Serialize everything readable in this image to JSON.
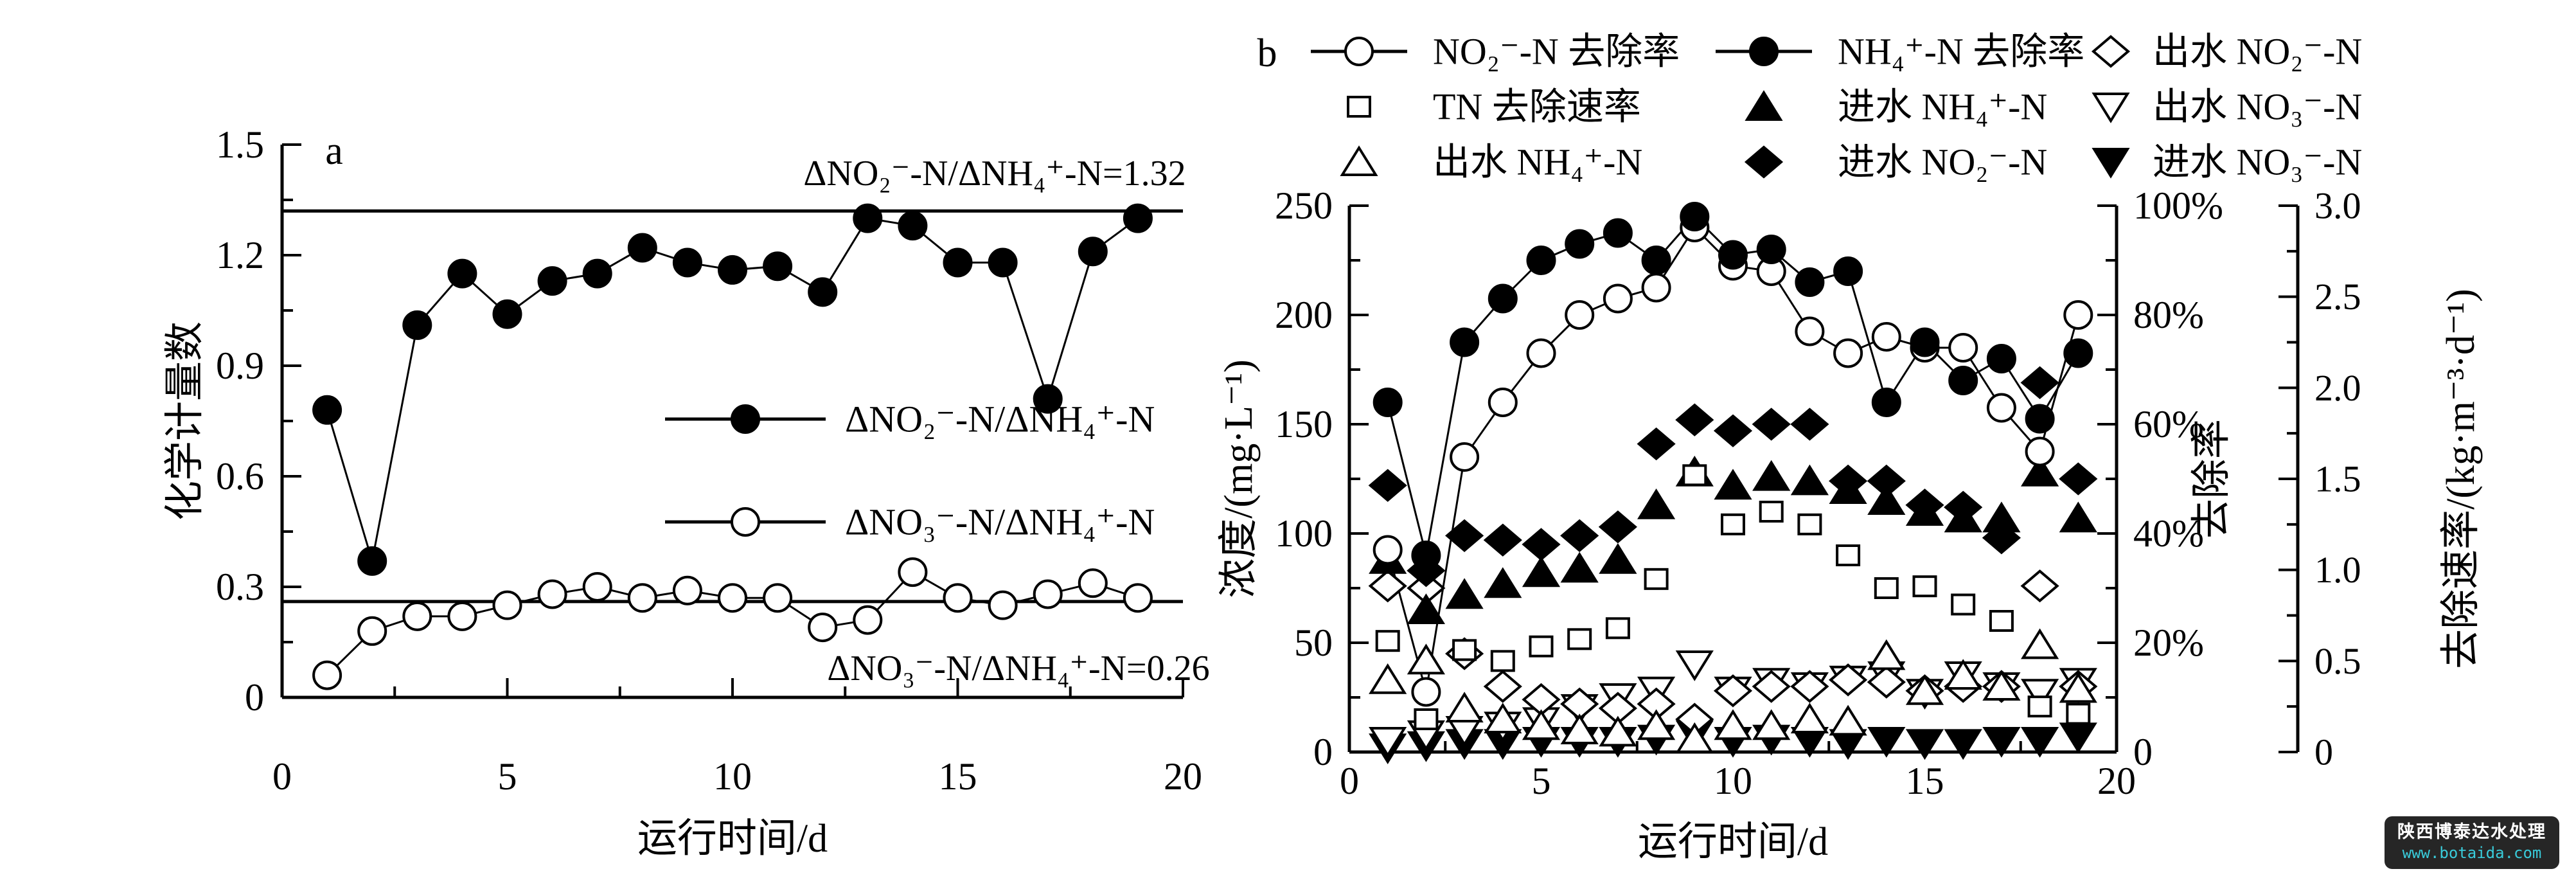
{
  "figure": {
    "background": "#ffffff",
    "ink_color": "#000000",
    "panel_a_label": "a",
    "panel_b_label": "b"
  },
  "watermark": {
    "company": "陕西博泰达水处理",
    "url": "www.botaida.com",
    "bg_color": "#161616",
    "company_color": "#ffffff",
    "url_color": "#2bc8d8"
  },
  "chart_data": [
    {
      "id": "panel-a",
      "type": "line",
      "panel_label": "a",
      "xlabel": "运行时间/d",
      "ylabel": "化学计量数",
      "xlim": [
        0,
        20
      ],
      "ylim": [
        0,
        1.5
      ],
      "xticks": [
        0,
        5,
        10,
        15,
        20
      ],
      "xminor_step": 2.5,
      "yticks": [
        "0",
        "0.3",
        "0.6",
        "0.9",
        "1.2",
        "1.5"
      ],
      "ytick_values": [
        0,
        0.3,
        0.6,
        0.9,
        1.2,
        1.5
      ],
      "yminor_step": 0.15,
      "grid": false,
      "x": [
        1,
        2,
        3,
        4,
        5,
        6,
        7,
        8,
        9,
        10,
        11,
        12,
        13,
        14,
        15,
        16,
        17,
        18,
        19
      ],
      "series": [
        {
          "name": "ΔNO₂⁻-N/ΔNH₄⁺-N",
          "marker": "circle",
          "fill": "filled",
          "line": true,
          "values": [
            0.78,
            0.37,
            1.01,
            1.15,
            1.04,
            1.13,
            1.15,
            1.22,
            1.18,
            1.16,
            1.17,
            1.1,
            1.3,
            1.28,
            1.18,
            1.18,
            0.81,
            1.21,
            1.3
          ]
        },
        {
          "name": "ΔNO₃⁻-N/ΔNH₄⁺-N",
          "marker": "circle",
          "fill": "open",
          "line": true,
          "values": [
            0.06,
            0.18,
            0.22,
            0.22,
            0.25,
            0.28,
            0.3,
            0.27,
            0.29,
            0.27,
            0.27,
            0.19,
            0.21,
            0.34,
            0.27,
            0.25,
            0.28,
            0.31,
            0.27
          ]
        }
      ],
      "reference_lines": [
        {
          "value": 1.32,
          "label": "ΔNO₂⁻-N/ΔNH₄⁺-N=1.32"
        },
        {
          "value": 0.26,
          "label": "ΔNO₃⁻-N/ΔNH₄⁺-N=0.26"
        }
      ],
      "legend_position": "center-right-inside"
    },
    {
      "id": "panel-b",
      "type": "line+scatter",
      "panel_label": "b",
      "xlabel": "运行时间/d",
      "xlim": [
        0,
        20
      ],
      "xticks": [
        0,
        5,
        10,
        15,
        20
      ],
      "xminor_step": 2.5,
      "axes": {
        "left": {
          "label": "浓度/(mg·L⁻¹)",
          "lim": [
            0,
            250
          ],
          "ticks": [
            "0",
            "50",
            "100",
            "150",
            "200",
            "250"
          ],
          "tick_values": [
            0,
            50,
            100,
            150,
            200,
            250
          ],
          "minor_step": 25
        },
        "right1": {
          "label": "去除率",
          "lim": [
            0,
            100
          ],
          "ticks": [
            "0",
            "20%",
            "40%",
            "60%",
            "80%",
            "100%"
          ],
          "tick_values": [
            0,
            20,
            40,
            60,
            80,
            100
          ],
          "minor_step": 10
        },
        "right2": {
          "label": "去除速率/(kg·m⁻³·d⁻¹)",
          "lim": [
            0,
            3.0
          ],
          "ticks": [
            "0",
            "0.5",
            "1.0",
            "1.5",
            "2.0",
            "2.5",
            "3.0"
          ],
          "tick_values": [
            0,
            0.5,
            1.0,
            1.5,
            2.0,
            2.5,
            3.0
          ],
          "minor_step": 0.25
        }
      },
      "x": [
        1,
        2,
        3,
        4,
        5,
        6,
        7,
        8,
        9,
        10,
        11,
        12,
        13,
        14,
        15,
        16,
        17,
        18,
        19
      ],
      "series": [
        {
          "name": "NO₂⁻-N 去除率",
          "axis": "right1",
          "marker": "circle",
          "fill": "open",
          "line": true,
          "values": [
            37,
            11,
            54,
            64,
            73,
            80,
            83,
            85,
            96,
            89,
            88,
            77,
            73,
            76,
            74,
            74,
            63,
            55,
            80
          ]
        },
        {
          "name": "NH₄⁺-N 去除率",
          "axis": "right1",
          "marker": "circle",
          "fill": "filled",
          "line": true,
          "values": [
            64,
            36,
            75,
            83,
            90,
            93,
            95,
            90,
            98,
            91,
            92,
            86,
            88,
            64,
            75,
            68,
            72,
            61,
            73
          ]
        },
        {
          "name": "TN 去除速率",
          "axis": "right2",
          "marker": "square",
          "fill": "open",
          "line": false,
          "values": [
            0.61,
            0.18,
            0.56,
            0.5,
            0.58,
            0.62,
            0.68,
            0.95,
            1.52,
            1.25,
            1.32,
            1.25,
            1.08,
            0.9,
            0.91,
            0.81,
            0.72,
            0.25,
            0.21
          ]
        },
        {
          "name": "进水 NH₄⁺-N",
          "axis": "left",
          "marker": "triangle-up",
          "fill": "filled",
          "line": false,
          "values": [
            88,
            65,
            72,
            77,
            82,
            84,
            88,
            113,
            128,
            122,
            126,
            124,
            120,
            115,
            110,
            107,
            107,
            128,
            107
          ]
        },
        {
          "name": "出水 NH₄⁺-N",
          "axis": "left",
          "marker": "triangle-up",
          "fill": "open",
          "line": false,
          "values": [
            33,
            42,
            20,
            15,
            12,
            10,
            9,
            12,
            6,
            12,
            12,
            15,
            14,
            44,
            28,
            35,
            30,
            49,
            29
          ]
        },
        {
          "name": "进水 NO₂⁻-N",
          "axis": "left",
          "marker": "diamond",
          "fill": "filled",
          "line": false,
          "values": [
            122,
            83,
            99,
            97,
            95,
            99,
            103,
            141,
            152,
            147,
            150,
            150,
            124,
            124,
            113,
            112,
            98,
            169,
            125
          ]
        },
        {
          "name": "出水 NO₂⁻-N",
          "axis": "left",
          "marker": "diamond",
          "fill": "open",
          "line": false,
          "values": [
            76,
            75,
            45,
            30,
            24,
            22,
            20,
            22,
            15,
            28,
            30,
            30,
            33,
            32,
            28,
            30,
            30,
            76,
            30
          ]
        },
        {
          "name": "出水 NO₃⁻-N",
          "axis": "left",
          "marker": "triangle-down",
          "fill": "open",
          "line": false,
          "values": [
            5,
            8,
            10,
            12,
            14,
            20,
            25,
            28,
            40,
            28,
            32,
            30,
            33,
            35,
            27,
            35,
            30,
            27,
            32
          ]
        },
        {
          "name": "进水 NO₃⁻-N",
          "axis": "left",
          "marker": "triangle-down",
          "fill": "filled",
          "line": false,
          "values": [
            2,
            3,
            4,
            4,
            5,
            5,
            5,
            6,
            8,
            5,
            6,
            5,
            4,
            5,
            4,
            4,
            5,
            5,
            7
          ]
        }
      ],
      "legend_rows": [
        [
          0,
          1,
          6
        ],
        [
          2,
          3,
          7
        ],
        [
          4,
          5,
          8
        ]
      ],
      "legend_position": "top"
    }
  ]
}
